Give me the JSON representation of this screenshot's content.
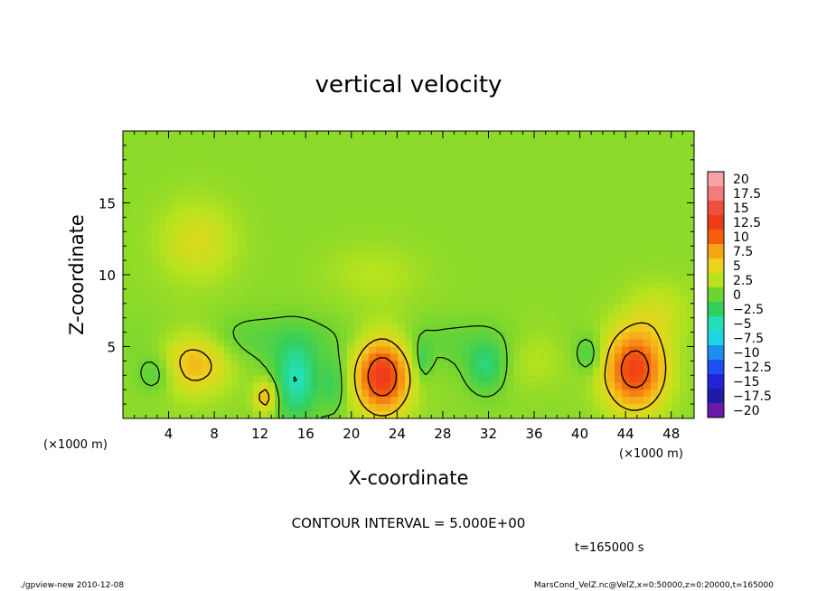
{
  "chart_data": {
    "type": "heatmap",
    "title": "vertical velocity",
    "xlabel": "X-coordinate",
    "ylabel": "Z-coordinate",
    "x_units_left": "(×1000 m)",
    "x_units_right": "(×1000 m)",
    "xlim": [
      0,
      50
    ],
    "ylim": [
      0,
      20
    ],
    "x_ticks": [
      4,
      8,
      12,
      16,
      20,
      24,
      28,
      32,
      36,
      40,
      44,
      48
    ],
    "y_ticks": [
      5,
      10,
      15
    ],
    "colorbar": {
      "labels": [
        "20",
        "17.5",
        "15",
        "12.5",
        "10",
        "7.5",
        "5",
        "2.5",
        "0",
        "-2.5",
        "-5",
        "-7.5",
        "-10",
        "-12.5",
        "-15",
        "-17.5",
        "-20"
      ],
      "colors": [
        "#f5a3a3",
        "#f27c7c",
        "#ee4f40",
        "#ef3a1a",
        "#f45e0c",
        "#f9a317",
        "#ecd41d",
        "#b8e31e",
        "#6ed431",
        "#33cf5c",
        "#23e0b8",
        "#1fd4e8",
        "#1b90ee",
        "#1d4ff2",
        "#2323d6",
        "#1f1aa8",
        "#6a19a8"
      ]
    },
    "field": {
      "background_value": 1.0,
      "features": [
        {
          "x": 22.7,
          "z": 3.0,
          "sx": 1.7,
          "sz": 1.9,
          "value": 12
        },
        {
          "x": 44.8,
          "z": 3.4,
          "sx": 1.9,
          "sz": 2.0,
          "value": 11
        },
        {
          "x": 6.2,
          "z": 4.0,
          "sx": 2.2,
          "sz": 1.6,
          "value": 6
        },
        {
          "x": 12.5,
          "z": 1.5,
          "sx": 0.7,
          "sz": 0.8,
          "value": 6
        },
        {
          "x": 15.2,
          "z": 2.6,
          "sx": 1.4,
          "sz": 1.9,
          "value": -6
        },
        {
          "x": 18.5,
          "z": 2.4,
          "sx": 0.8,
          "sz": 1.4,
          "value": -3
        },
        {
          "x": 3.0,
          "z": 3.2,
          "sx": 1.2,
          "sz": 1.0,
          "value": -3
        },
        {
          "x": 26.3,
          "z": 4.0,
          "sx": 0.5,
          "sz": 1.0,
          "value": -3
        },
        {
          "x": 31.8,
          "z": 3.5,
          "sx": 1.2,
          "sz": 1.2,
          "value": -4
        },
        {
          "x": 40.8,
          "z": 4.4,
          "sx": 0.8,
          "sz": 0.9,
          "value": -3
        },
        {
          "x": 6.5,
          "z": 12.3,
          "sx": 2.4,
          "sz": 2.0,
          "value": 3
        },
        {
          "x": 22.0,
          "z": 10.0,
          "sx": 3.0,
          "sz": 1.5,
          "value": 1.5
        },
        {
          "x": 36.0,
          "z": 4.5,
          "sx": 2.0,
          "sz": 1.5,
          "value": 2
        },
        {
          "x": 10.5,
          "z": 5.5,
          "sx": 6.0,
          "sz": 1.2,
          "value": -2
        },
        {
          "x": 30.0,
          "z": 5.2,
          "sx": 6.0,
          "sz": 1.2,
          "value": -1.5
        },
        {
          "x": 47.0,
          "z": 7.5,
          "sx": 2.0,
          "sz": 1.5,
          "value": 2
        }
      ]
    }
  },
  "footer": {
    "contour_interval": "CONTOUR INTERVAL = 5.000E+00",
    "time": "t=165000 s",
    "program": "./gpview-new  2010-12-08",
    "source": "MarsCond_VelZ.nc@VelZ,x=0:50000,z=0:20000,t=165000"
  }
}
